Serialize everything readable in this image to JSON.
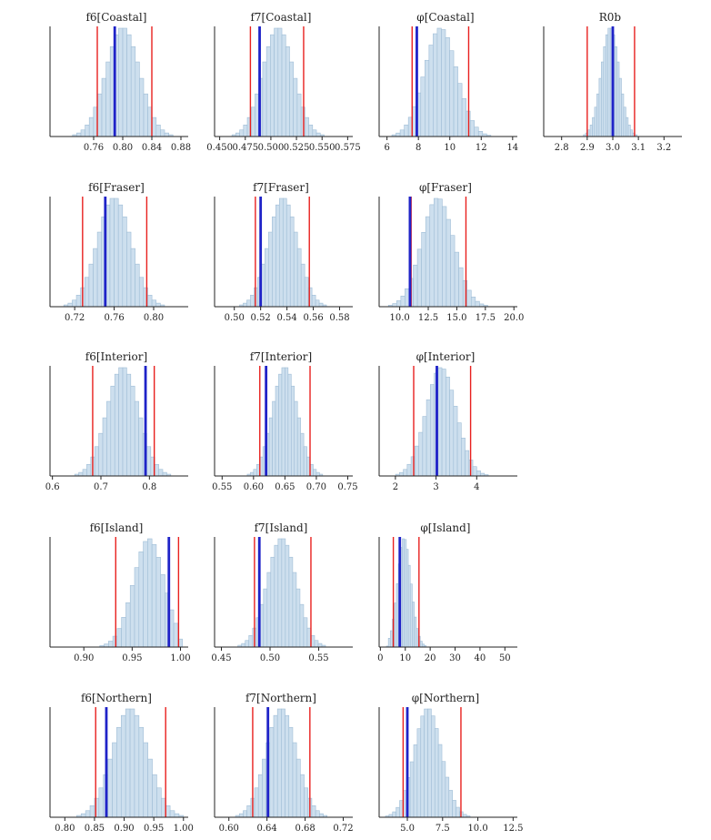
{
  "chart_data": {
    "type": "histogram-grid",
    "colors": {
      "bar_fill": "#cddfee",
      "bar_stroke": "#9fbdd6",
      "interval_line": "#e8201e",
      "point_line": "#1f23c8",
      "axis": "#222222"
    },
    "panels": [
      {
        "id": "f6-coastal",
        "title": "f6[Coastal]",
        "xlim": [
          0.7,
          0.89
        ],
        "ticks": [
          0.76,
          0.8,
          0.84,
          0.88
        ],
        "tick_labels": [
          "0.76",
          "0.80",
          "0.84",
          "0.88"
        ],
        "mean": 0.8,
        "sd": 0.023,
        "ci": [
          0.765,
          0.84
        ],
        "point": 0.789
      },
      {
        "id": "f7-coastal",
        "title": "f7[Coastal]",
        "xlim": [
          0.445,
          0.58
        ],
        "ticks": [
          0.45,
          0.475,
          0.5,
          0.525,
          0.55,
          0.575
        ],
        "tick_labels": [
          "0.450",
          "0.475",
          "0.500",
          "0.525",
          "0.550",
          "0.575"
        ],
        "mean": 0.507,
        "sd": 0.015,
        "ci": [
          0.48,
          0.532
        ],
        "point": 0.489
      },
      {
        "id": "phi-coastal",
        "title": "φ[Coastal]",
        "xlim": [
          5.5,
          14.3
        ],
        "ticks": [
          6,
          8,
          10,
          12,
          14
        ],
        "tick_labels": [
          "6",
          "8",
          "10",
          "12",
          "14"
        ],
        "mean": 9.2,
        "sd": 1.05,
        "ci": [
          7.6,
          11.2
        ],
        "point": 7.9,
        "skew": 0.35
      },
      {
        "id": "r0b",
        "title": "R0b",
        "xlim": [
          2.73,
          3.27
        ],
        "ticks": [
          2.8,
          2.9,
          3.0,
          3.1,
          3.2
        ],
        "tick_labels": [
          "2.8",
          "2.9",
          "3.0",
          "3.1",
          "3.2"
        ],
        "mean": 2.99,
        "sd": 0.035,
        "ci": [
          2.9,
          3.085
        ],
        "point": 3.0
      },
      {
        "id": "f6-fraser",
        "title": "f6[Fraser]",
        "xlim": [
          0.695,
          0.835
        ],
        "ticks": [
          0.72,
          0.76,
          0.8
        ],
        "tick_labels": [
          "0.72",
          "0.76",
          "0.80"
        ],
        "mean": 0.76,
        "sd": 0.017,
        "ci": [
          0.728,
          0.793
        ],
        "point": 0.751
      },
      {
        "id": "f7-fraser",
        "title": "f7[Fraser]",
        "xlim": [
          0.485,
          0.59
        ],
        "ticks": [
          0.5,
          0.52,
          0.54,
          0.56,
          0.58
        ],
        "tick_labels": [
          "0.50",
          "0.52",
          "0.54",
          "0.56",
          "0.58"
        ],
        "mean": 0.537,
        "sd": 0.011,
        "ci": [
          0.516,
          0.557
        ],
        "point": 0.52
      },
      {
        "id": "phi-fraser",
        "title": "φ[Fraser]",
        "xlim": [
          8.2,
          20.3
        ],
        "ticks": [
          10.0,
          12.5,
          15.0,
          17.5,
          20.0
        ],
        "tick_labels": [
          "10.0",
          "12.5",
          "15.0",
          "17.5",
          "20.0"
        ],
        "mean": 13.0,
        "sd": 1.45,
        "ci": [
          11.0,
          15.8
        ],
        "point": 10.9,
        "skew": 0.4
      },
      {
        "id": "f6-interior",
        "title": "f6[Interior]",
        "xlim": [
          0.595,
          0.88
        ],
        "ticks": [
          0.6,
          0.7,
          0.8
        ],
        "tick_labels": [
          "0.6",
          "0.7",
          "0.8"
        ],
        "mean": 0.745,
        "sd": 0.033,
        "ci": [
          0.683,
          0.81
        ],
        "point": 0.792
      },
      {
        "id": "f7-interior",
        "title": "f7[Interior]",
        "xlim": [
          0.538,
          0.758
        ],
        "ticks": [
          0.55,
          0.6,
          0.65,
          0.7,
          0.75
        ],
        "tick_labels": [
          "0.55",
          "0.60",
          "0.65",
          "0.70",
          "0.75"
        ],
        "mean": 0.65,
        "sd": 0.02,
        "ci": [
          0.61,
          0.69
        ],
        "point": 0.62
      },
      {
        "id": "phi-interior",
        "title": "φ[Interior]",
        "xlim": [
          1.6,
          5.0
        ],
        "ticks": [
          2,
          3,
          4
        ],
        "tick_labels": [
          "2",
          "3",
          "4"
        ],
        "mean": 3.05,
        "sd": 0.38,
        "ci": [
          2.45,
          3.85
        ],
        "point": 3.02,
        "skew": 0.35
      },
      {
        "id": "f6-island",
        "title": "f6[Island]",
        "xlim": [
          0.865,
          1.008
        ],
        "ticks": [
          0.9,
          0.95,
          1.0
        ],
        "tick_labels": [
          "0.90",
          "0.95",
          "1.00"
        ],
        "mean": 0.975,
        "sd": 0.018,
        "ci": [
          0.933,
          0.998
        ],
        "point": 0.988,
        "skew": -0.9,
        "max": 1.0
      },
      {
        "id": "f7-island",
        "title": "f7[Island]",
        "xlim": [
          0.443,
          0.585
        ],
        "ticks": [
          0.45,
          0.5,
          0.55
        ],
        "tick_labels": [
          "0.45",
          "0.50",
          "0.55"
        ],
        "mean": 0.512,
        "sd": 0.015,
        "ci": [
          0.484,
          0.542
        ],
        "point": 0.489
      },
      {
        "id": "phi-island",
        "title": "φ[Island]",
        "xlim": [
          -0.5,
          55
        ],
        "ticks": [
          0,
          10,
          20,
          30,
          40,
          50
        ],
        "tick_labels": [
          "0",
          "10",
          "20",
          "30",
          "40",
          "50"
        ],
        "mean": 8.0,
        "sd": 3.2,
        "ci": [
          5.2,
          15.5
        ],
        "point": 7.8,
        "skew": 1.2,
        "min": 3.0
      },
      {
        "id": "f6-northern",
        "title": "f6[Northern]",
        "xlim": [
          0.775,
          1.008
        ],
        "ticks": [
          0.8,
          0.85,
          0.9,
          0.95,
          1.0
        ],
        "tick_labels": [
          "0.80",
          "0.85",
          "0.90",
          "0.95",
          "1.00"
        ],
        "mean": 0.91,
        "sd": 0.03,
        "ci": [
          0.852,
          0.97
        ],
        "point": 0.87
      },
      {
        "id": "f7-northern",
        "title": "f7[Northern]",
        "xlim": [
          0.585,
          0.73
        ],
        "ticks": [
          0.6,
          0.64,
          0.68,
          0.72
        ],
        "tick_labels": [
          "0.60",
          "0.64",
          "0.68",
          "0.72"
        ],
        "mean": 0.655,
        "sd": 0.016,
        "ci": [
          0.625,
          0.685
        ],
        "point": 0.641
      },
      {
        "id": "phi-northern",
        "title": "φ[Northern]",
        "xlim": [
          3.0,
          12.8
        ],
        "ticks": [
          5.0,
          7.5,
          10.0,
          12.5
        ],
        "tick_labels": [
          "5.0",
          "7.5",
          "10.0",
          "12.5"
        ],
        "mean": 6.2,
        "sd": 1.0,
        "ci": [
          4.7,
          8.8
        ],
        "point": 5.0,
        "skew": 0.45
      }
    ]
  }
}
